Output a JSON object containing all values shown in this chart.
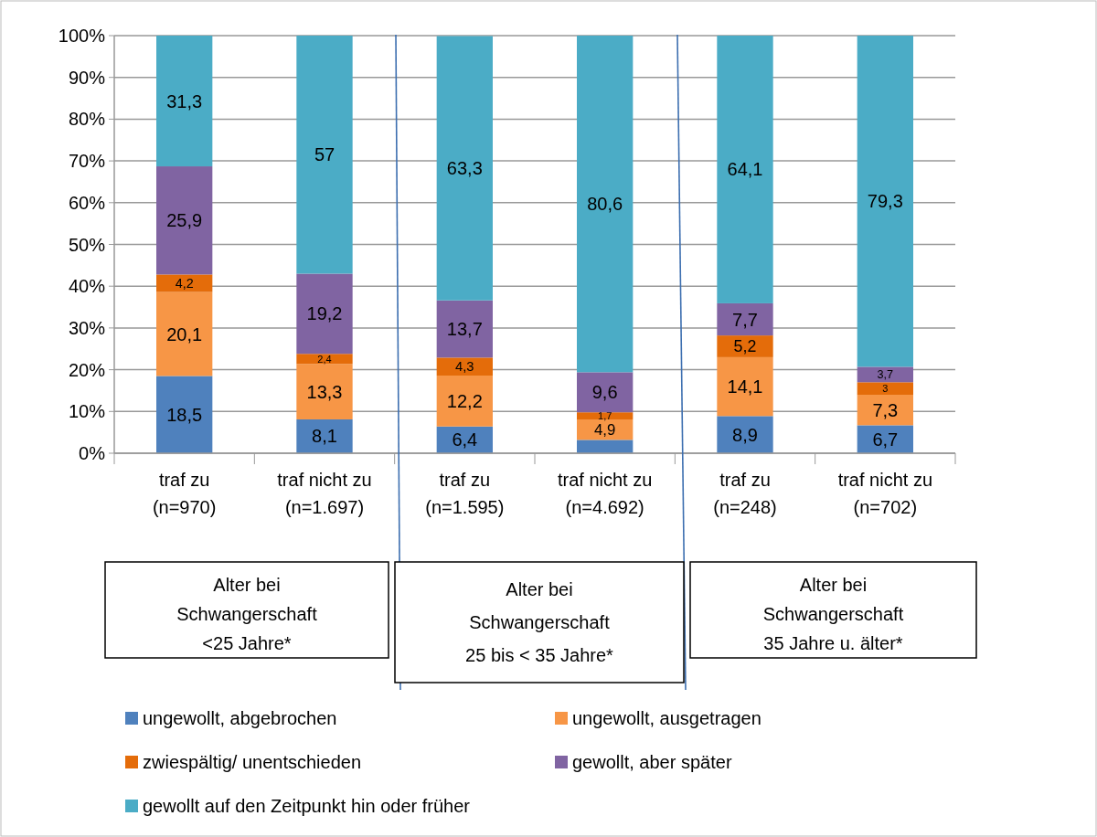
{
  "chart_data": {
    "type": "bar",
    "stacked": true,
    "categories": [
      "traf zu\n(n=970)",
      "traf nicht zu\n(n=1.697)",
      "traf zu\n(n=1.595)",
      "traf nicht zu\n(n=4.692)",
      "traf zu\n(n=248)",
      "traf nicht zu\n(n=702)"
    ],
    "series": [
      {
        "name": "ungewollt, abgebrochen",
        "color": "#4f81bd",
        "values": [
          18.5,
          8.1,
          6.4,
          3.2,
          8.9,
          6.7
        ],
        "value_labels": [
          "18,5",
          "8,1",
          "6,4",
          null,
          "8,9",
          "6,7"
        ]
      },
      {
        "name": "ungewollt, ausgetragen",
        "color": "#f79646",
        "values": [
          20.1,
          13.3,
          12.2,
          4.9,
          14.1,
          7.3
        ],
        "value_labels": [
          "20,1",
          "13,3",
          "12,2",
          "4,9",
          "14,1",
          "7,3"
        ]
      },
      {
        "name": "zwiespältig/ unentschieden",
        "color": "#e46c0a",
        "values": [
          4.2,
          2.4,
          4.3,
          1.7,
          5.2,
          3
        ],
        "value_labels": [
          "4,2",
          "2,4",
          "4,3",
          "1,7",
          "5,2",
          "3"
        ]
      },
      {
        "name": "gewollt, aber später",
        "color": "#8064a2",
        "values": [
          25.9,
          19.2,
          13.7,
          9.6,
          7.7,
          3.7
        ],
        "value_labels": [
          "25,9",
          "19,2",
          "13,7",
          "9,6",
          "7,7",
          "3,7"
        ]
      },
      {
        "name": "gewollt auf den Zeitpunkt hin oder früher",
        "color": "#4bacc6",
        "values": [
          31.3,
          57,
          63.3,
          80.6,
          64.1,
          79.3
        ],
        "value_labels": [
          "31,3",
          "57",
          "63,3",
          "80,6",
          "64,1",
          "79,3"
        ]
      }
    ],
    "ylim": [
      0,
      100
    ],
    "yticks": [
      {
        "value": 0,
        "label": "0%"
      },
      {
        "value": 10,
        "label": "10%"
      },
      {
        "value": 20,
        "label": "20%"
      },
      {
        "value": 30,
        "label": "30%"
      },
      {
        "value": 40,
        "label": "40%"
      },
      {
        "value": 50,
        "label": "50%"
      },
      {
        "value": 60,
        "label": "60%"
      },
      {
        "value": 70,
        "label": "70%"
      },
      {
        "value": 80,
        "label": "80%"
      },
      {
        "value": 90,
        "label": "90%"
      },
      {
        "value": 100,
        "label": "100%"
      }
    ],
    "grid": "y",
    "legend": "bottom",
    "annotations": [
      "Alter bei\nSchwangerschaft\n<25 Jahre*",
      "Alter bei\nSchwangerschaft\n25 bis < 35 Jahre*",
      "Alter bei\nSchwangerschaft\n35 Jahre u. älter*"
    ]
  }
}
